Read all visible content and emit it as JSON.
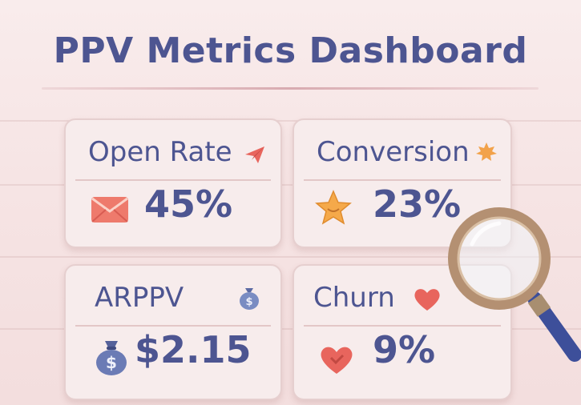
{
  "title": "PPV Metrics Dashboard",
  "cards": [
    {
      "label": "Open Rate",
      "value": "45%",
      "icon": "envelope-icon",
      "accent_icon": "paper-plane-icon"
    },
    {
      "label": "Conversion",
      "value": "23%",
      "icon": "star-icon",
      "accent_icon": "maple-leaf-icon"
    },
    {
      "label": "ARPPV",
      "value": "$2.15",
      "icon": "money-bag-icon",
      "accent_icon": "money-bag-icon"
    },
    {
      "label": "Churn",
      "value": "9%",
      "icon": "heart-icon",
      "accent_icon": "heart-icon"
    }
  ],
  "colors": {
    "text": "#4d5591",
    "background": "#f6e4e4",
    "card": "#f7ecec",
    "accent_red": "#e8655d",
    "accent_orange": "#f2a24a",
    "bag_blue": "#6b7bb5"
  }
}
